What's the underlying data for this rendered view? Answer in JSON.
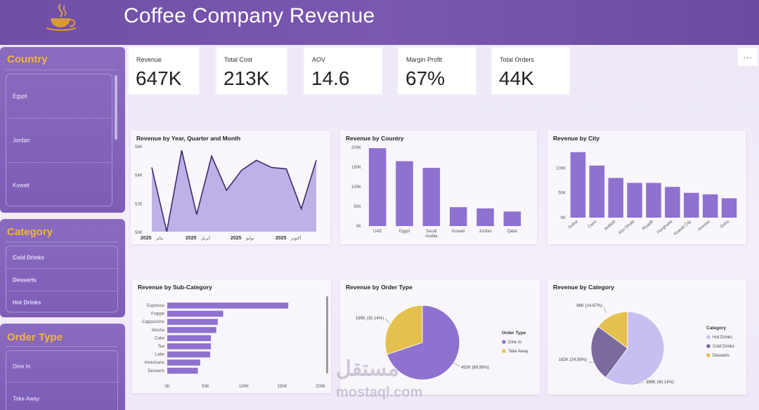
{
  "header": {
    "title": "Coffee Company Revenue",
    "logo_icon": "coffee-cup-logo"
  },
  "slicers": {
    "country": {
      "title": "Country",
      "items": [
        "Egypt",
        "Jordan",
        "Kuwait"
      ]
    },
    "category": {
      "title": "Category",
      "items": [
        "Cold Drinks",
        "Desserts",
        "Hot Drinks"
      ]
    },
    "order_type": {
      "title": "Order Type",
      "items": [
        "Dine In",
        "Take Away"
      ]
    }
  },
  "kpis": [
    {
      "label": "Revenue",
      "value": "647K"
    },
    {
      "label": "Total Cost",
      "value": "213K"
    },
    {
      "label": "AOV",
      "value": "14.6"
    },
    {
      "label": "Margin Profit",
      "value": "67%"
    },
    {
      "label": "Total Orders",
      "value": "44K"
    }
  ],
  "more_options": "...",
  "colors": {
    "accent": "#8f71cf",
    "area_fill": "#bfb0e8",
    "yellow": "#e4c14f",
    "slate": "#7a6a9e",
    "light": "#c7bff0",
    "title_gold": "#f3b43a"
  },
  "chart_data": [
    {
      "type": "area",
      "title": "Revenue by Year, Quarter and Month",
      "y_ticks": [
        "56K",
        "54K",
        "52K",
        "50K"
      ],
      "ylim": [
        50000,
        56000
      ],
      "x_ticks": [
        {
          "year": "2025",
          "month": "يناير"
        },
        {
          "year": "2025",
          "month": "أبريل"
        },
        {
          "year": "2025",
          "month": "يوليو"
        },
        {
          "year": "2025",
          "month": "أكتوبر"
        }
      ],
      "values": [
        54500,
        50000,
        55700,
        51200,
        55300,
        52900,
        54300,
        55000,
        54500,
        54400,
        51600,
        55000
      ]
    },
    {
      "type": "bar",
      "title": "Revenue by Country",
      "categories": [
        "UAE",
        "Egypt",
        "Saudi Arabia",
        "Kuwait",
        "Jordan",
        "Qatar"
      ],
      "values": [
        198000,
        165000,
        148000,
        48000,
        45000,
        37000
      ],
      "y_ticks": [
        "200K",
        "150K",
        "100K",
        "50K",
        "0K"
      ],
      "ylim": [
        0,
        200000
      ]
    },
    {
      "type": "bar",
      "title": "Revenue by City",
      "categories": [
        "Dubai",
        "Cairo",
        "Jeddah",
        "Abu Dhabi",
        "Riyadh",
        "Hurghada",
        "Kuwait City",
        "Amman",
        "Doha"
      ],
      "values": [
        132000,
        105000,
        80000,
        70000,
        70000,
        62000,
        50000,
        47000,
        39000
      ],
      "y_ticks": [
        "100K",
        "50K",
        "0K"
      ],
      "ylim": [
        0,
        150000
      ]
    },
    {
      "type": "bar",
      "orientation": "horizontal",
      "title": "Revenue by Sub-Category",
      "categories": [
        "Espresso",
        "Frappe",
        "Cappuccino",
        "Mocha",
        "Cake",
        "Tea",
        "Latte",
        "Americano",
        "Desserts"
      ],
      "values": [
        158000,
        73000,
        66000,
        64000,
        57000,
        57000,
        56000,
        43000,
        40000
      ],
      "x_ticks": [
        "0K",
        "50K",
        "100K",
        "150K",
        "200K"
      ],
      "xlim": [
        0,
        200000
      ]
    },
    {
      "type": "pie",
      "title": "Revenue by Order Type",
      "legend_title": "Order Type",
      "slices": [
        {
          "name": "Dine In",
          "value": 69.86,
          "label": "452K (69.86%)"
        },
        {
          "name": "Take Away",
          "value": 30.14,
          "label": "195K (30.14%)"
        }
      ]
    },
    {
      "type": "pie",
      "title": "Revenue by Category",
      "legend_title": "Category",
      "slices": [
        {
          "name": "Hot Drinks",
          "value": 60.14,
          "label": "389K (60.14%)"
        },
        {
          "name": "Cold Drinks",
          "value": 24.99,
          "label": "162K (24.99%)"
        },
        {
          "name": "Desserts",
          "value": 14.87,
          "label": "96K (14.87%)"
        }
      ]
    }
  ],
  "watermark": {
    "arabic": "مستقل",
    "latin": "mostaql.com"
  }
}
